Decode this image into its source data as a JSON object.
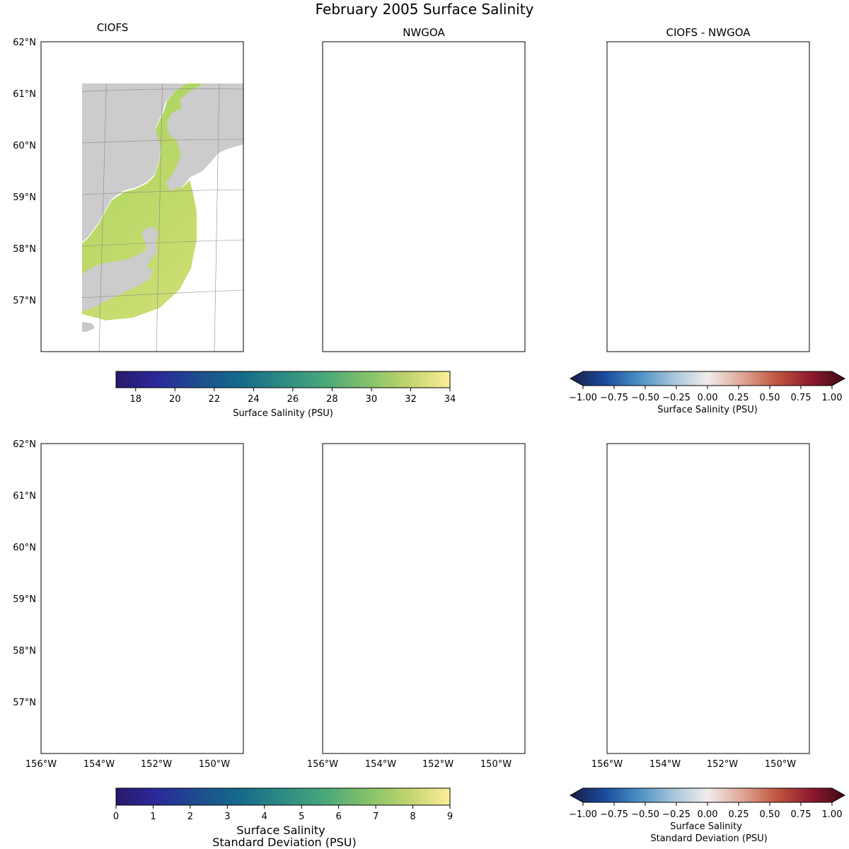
{
  "figure": {
    "suptitle": "February 2005 Surface Salinity"
  },
  "chart_data": [
    {
      "id": "mean_ciofs",
      "type": "heatmap",
      "title": "CIOFS",
      "variable": "mean surface salinity (PSU)",
      "lat_ticks": [
        "62°N",
        "61°N",
        "60°N",
        "59°N",
        "58°N",
        "57°N"
      ],
      "lon_ticks": [],
      "domain": "ciofs",
      "colormap": "haline",
      "field": "mean_ciofs"
    },
    {
      "id": "mean_nwgoa",
      "type": "heatmap",
      "title": "NWGOA",
      "variable": "mean surface salinity (PSU)",
      "lat_ticks": [],
      "lon_ticks": [],
      "domain": "nwgoa",
      "colormap": "haline",
      "field": "mean_nwgoa"
    },
    {
      "id": "mean_diff",
      "type": "heatmap",
      "title": "CIOFS - NWGOA",
      "variable": "surface salinity difference (PSU)",
      "lat_ticks": [],
      "lon_ticks": [],
      "domain": "ciofs",
      "colormap": "balance",
      "field": "mean_diff"
    },
    {
      "id": "std_ciofs",
      "type": "heatmap",
      "title": "",
      "variable": "surface salinity standard deviation (PSU)",
      "lat_ticks": [
        "62°N",
        "61°N",
        "60°N",
        "59°N",
        "58°N",
        "57°N"
      ],
      "lon_ticks": [
        "156°W",
        "154°W",
        "152°W",
        "150°W"
      ],
      "domain": "ciofs",
      "colormap": "haline",
      "field": "std_ciofs"
    },
    {
      "id": "std_nwgoa",
      "type": "heatmap",
      "title": "",
      "variable": "surface salinity standard deviation (PSU)",
      "lat_ticks": [],
      "lon_ticks": [
        "156°W",
        "154°W",
        "152°W",
        "150°W"
      ],
      "domain": "nwgoa",
      "colormap": "haline",
      "field": "std_nwgoa"
    },
    {
      "id": "std_diff",
      "type": "heatmap",
      "title": "",
      "variable": "standard deviation difference (PSU)",
      "lat_ticks": [],
      "lon_ticks": [
        "156°W",
        "154°W",
        "152°W",
        "150°W"
      ],
      "domain": "ciofs",
      "colormap": "balance",
      "field": "std_diff"
    }
  ],
  "colorbars": {
    "mean": {
      "colormap": "haline",
      "range": [
        17,
        34
      ],
      "ticks": [
        "18",
        "20",
        "22",
        "24",
        "26",
        "28",
        "30",
        "32",
        "34"
      ],
      "label": "Surface Salinity (PSU)"
    },
    "mean_diff": {
      "colormap": "balance",
      "range": [
        -1,
        1
      ],
      "extend": "both",
      "ticks": [
        "−1.00",
        "−0.75",
        "−0.50",
        "−0.25",
        "0.00",
        "0.25",
        "0.50",
        "0.75",
        "1.00"
      ],
      "label": "Surface Salinity (PSU)"
    },
    "std": {
      "colormap": "haline",
      "range": [
        0,
        9
      ],
      "ticks": [
        "0",
        "1",
        "2",
        "3",
        "4",
        "5",
        "6",
        "7",
        "8",
        "9"
      ],
      "label_line1": "Surface Salinity",
      "label_line2": "Standard Deviation (PSU)"
    },
    "std_diff": {
      "colormap": "balance",
      "range": [
        -1,
        1
      ],
      "extend": "both",
      "ticks": [
        "−1.00",
        "−0.75",
        "−0.50",
        "−0.25",
        "0.00",
        "0.25",
        "0.50",
        "0.75",
        "1.00"
      ],
      "label_line1": "Surface Salinity",
      "label_line2": "Standard Deviation (PSU)"
    }
  },
  "colors": {
    "land": "#cccccc",
    "frame": "#000000",
    "haline": [
      "#2a186c",
      "#2a2a9c",
      "#1d4e8d",
      "#156b8a",
      "#2d8b84",
      "#49a77a",
      "#82c16a",
      "#c0d46e",
      "#fdee99"
    ],
    "balance": [
      "#181c43",
      "#1a4b9e",
      "#4a8fc4",
      "#a6c5da",
      "#f1ecec",
      "#dfa797",
      "#c0573f",
      "#901a2f",
      "#3c0912"
    ],
    "ciofs_mean_fill": "#c2da6c",
    "nwgoa_mean_fill": "#d2df74",
    "std_fill": "#29197a"
  }
}
